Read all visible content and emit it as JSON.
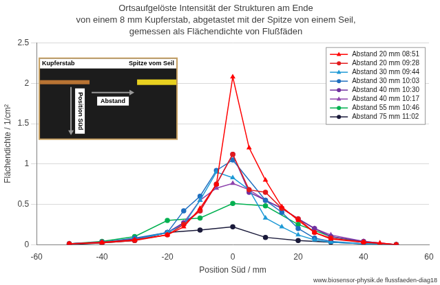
{
  "chart_data": {
    "type": "line",
    "title": [
      "Ortsaufgelöste Intensität der Strukturen am Ende",
      "von einem 8 mm Kupferstab, abgetastet mit der Spitze von einem Seil,",
      "gemessen als Flächendichte von Flußfäden"
    ],
    "x_label": "Position Süd / mm",
    "y_label": "Flächendichte / 1/cm²",
    "xlim": [
      -60,
      60
    ],
    "xticks": [
      -60,
      -40,
      -20,
      0,
      20,
      40,
      60
    ],
    "ylim": [
      0,
      2.5
    ],
    "yticks": [
      0,
      0.5,
      1,
      1.5,
      2,
      2.5
    ],
    "grid": "y",
    "legend": "upper right",
    "inset": {
      "rod": "Kupferstab",
      "tip": "Spitze vom Seil",
      "distance": "Abstand",
      "direction": "Position Süd"
    },
    "source": "www.biosensor-physik.de flussfaeden-diag18",
    "series": [
      {
        "name": "Abstand 20 mm 08:51",
        "color": "#ff0000",
        "marker": "triangle",
        "x": [
          -50,
          -40,
          -30,
          -20,
          -15,
          -10,
          -5,
          0,
          5,
          10,
          15,
          20,
          25,
          30,
          40,
          45,
          50
        ],
        "values": [
          0.01,
          0.03,
          0.06,
          0.12,
          0.22,
          0.45,
          0.75,
          2.08,
          1.2,
          0.8,
          0.47,
          0.3,
          0.15,
          0.07,
          0.03,
          0.02,
          0.0
        ]
      },
      {
        "name": "Abstand 20 mm 09:28",
        "color": "#e31a1c",
        "marker": "circle",
        "x": [
          -50,
          -40,
          -30,
          -20,
          -15,
          -10,
          -5,
          0,
          5,
          10,
          15,
          20,
          25,
          30,
          40,
          50
        ],
        "values": [
          0.01,
          0.02,
          0.05,
          0.12,
          0.25,
          0.42,
          0.75,
          1.12,
          0.68,
          0.65,
          0.45,
          0.32,
          0.15,
          0.08,
          0.03,
          0.0
        ]
      },
      {
        "name": "Abstand 30 mm 09:44",
        "color": "#1f9ad6",
        "marker": "triangle",
        "x": [
          -50,
          -40,
          -30,
          -20,
          -15,
          -10,
          -5,
          0,
          5,
          10,
          15,
          20,
          25,
          30,
          40,
          50
        ],
        "values": [
          0.01,
          0.03,
          0.06,
          0.15,
          0.25,
          0.55,
          0.9,
          0.83,
          0.68,
          0.33,
          0.22,
          0.12,
          0.06,
          0.03,
          0.01,
          0.0
        ]
      },
      {
        "name": "Abstand 30 mm 10:03",
        "color": "#1f6fc0",
        "marker": "circle",
        "x": [
          -50,
          -40,
          -30,
          -20,
          -15,
          -10,
          -5,
          0,
          10,
          15,
          20,
          25,
          30,
          40,
          50
        ],
        "values": [
          0.01,
          0.03,
          0.08,
          0.15,
          0.42,
          0.6,
          0.92,
          1.05,
          0.55,
          0.4,
          0.2,
          0.08,
          0.04,
          0.01,
          0.0
        ]
      },
      {
        "name": "Abstand 40 mm 10:30",
        "color": "#7030a0",
        "marker": "circle",
        "x": [
          -50,
          -40,
          -30,
          -20,
          -15,
          -10,
          -5,
          0,
          5,
          10,
          15,
          20,
          25,
          30,
          40,
          50
        ],
        "values": [
          0.01,
          0.03,
          0.07,
          0.15,
          0.27,
          0.42,
          0.75,
          1.12,
          0.65,
          0.55,
          0.45,
          0.32,
          0.2,
          0.1,
          0.04,
          0.0
        ]
      },
      {
        "name": "Abstand 40 mm 10:17",
        "color": "#8e44ad",
        "marker": "triangle",
        "x": [
          -50,
          -40,
          -30,
          -20,
          -15,
          -10,
          -5,
          0,
          5,
          10,
          15,
          20,
          25,
          30,
          40,
          50
        ],
        "values": [
          0.01,
          0.03,
          0.06,
          0.15,
          0.27,
          0.55,
          0.7,
          0.76,
          0.68,
          0.55,
          0.45,
          0.32,
          0.2,
          0.12,
          0.04,
          0.0
        ]
      },
      {
        "name": "Abstand 55 mm 10:46",
        "color": "#00b050",
        "marker": "circle",
        "x": [
          -50,
          -40,
          -30,
          -20,
          -10,
          0,
          10,
          20,
          30,
          40,
          50
        ],
        "values": [
          0.01,
          0.04,
          0.1,
          0.3,
          0.33,
          0.51,
          0.48,
          0.25,
          0.1,
          0.03,
          0.0
        ]
      },
      {
        "name": "Abstand 75 mm 11:02",
        "color": "#1a1a3a",
        "marker": "circle",
        "x": [
          -50,
          -40,
          -30,
          -20,
          -10,
          0,
          10,
          20,
          30,
          40,
          50
        ],
        "values": [
          0.0,
          0.02,
          0.05,
          0.15,
          0.18,
          0.22,
          0.09,
          0.05,
          0.03,
          0.01,
          0.0
        ]
      }
    ]
  }
}
